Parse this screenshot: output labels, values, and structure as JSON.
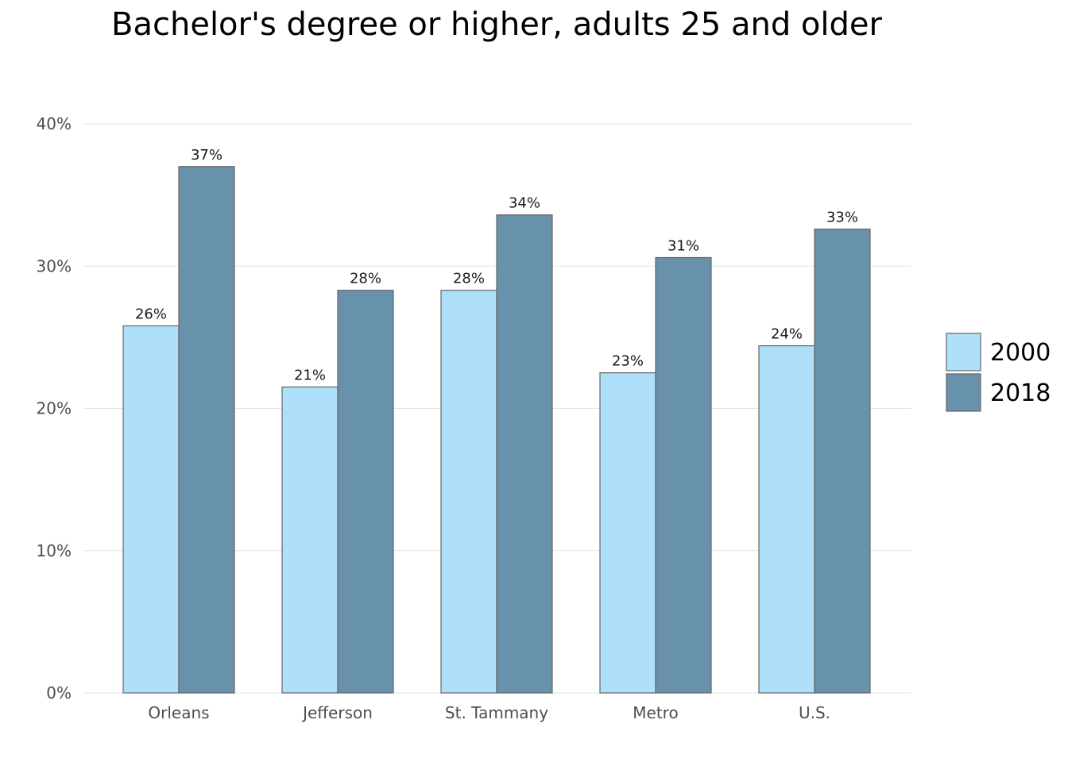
{
  "chart_data": {
    "type": "bar",
    "title": "Bachelor's degree or higher, adults 25 and older",
    "xlabel": "",
    "ylabel": "",
    "categories": [
      "Orleans",
      "Jefferson",
      "St. Tammany",
      "Metro",
      "U.S."
    ],
    "series": [
      {
        "name": "2000",
        "values": [
          25.8,
          21.5,
          28.3,
          22.5,
          24.4
        ],
        "labels": [
          "26%",
          "21%",
          "28%",
          "23%",
          "24%"
        ],
        "color": "#aee0fa"
      },
      {
        "name": "2018",
        "values": [
          37.0,
          28.3,
          33.6,
          30.6,
          32.6
        ],
        "labels": [
          "37%",
          "28%",
          "34%",
          "31%",
          "33%"
        ],
        "color": "#6891ab"
      }
    ],
    "ylim": [
      0,
      40
    ],
    "yticks": [
      0,
      10,
      20,
      30,
      40
    ],
    "ytick_labels": [
      "0%",
      "10%",
      "20%",
      "30%",
      "40%"
    ],
    "grid": "horizontal",
    "legend_position": "right",
    "bar_outline_color": "#666666",
    "grid_color": "#e3e3e3"
  }
}
